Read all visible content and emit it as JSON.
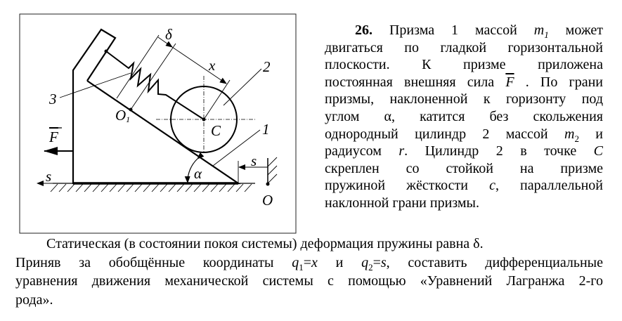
{
  "figure": {
    "labels": {
      "delta": "δ",
      "x": "x",
      "cylinder": "2",
      "stand": "3",
      "prism": "1",
      "o1": "O",
      "o1_sub": "1",
      "c": "C",
      "force": "F",
      "alpha": "α",
      "s_left": "s",
      "s_right": "s",
      "origin": "O"
    }
  },
  "problem": {
    "right_lines": [
      [
        {
          "t": "26.",
          "s": "b"
        },
        {
          "t": " Призма 1 массой "
        },
        {
          "t": "m",
          "s": "i"
        },
        {
          "t": "1",
          "s": "isub"
        },
        {
          "t": " может"
        }
      ],
      [
        {
          "t": "двигаться по гладкой горизонтальной"
        }
      ],
      [
        {
          "t": "плоскости. К призме приложена"
        }
      ],
      [
        {
          "t": "постоянная внешняя сила "
        },
        {
          "t": "F",
          "s": "ov"
        },
        {
          "t": " . По грани"
        }
      ],
      [
        {
          "t": "призмы, наклоненной к горизонту под"
        }
      ],
      [
        {
          "t": "углом α, катится без скольжения"
        }
      ],
      [
        {
          "t": "однородный цилиндр 2 массой "
        },
        {
          "t": "m",
          "s": "i"
        },
        {
          "t": "2",
          "s": "sub"
        },
        {
          "t": " и"
        }
      ],
      [
        {
          "t": "радиусом "
        },
        {
          "t": "r",
          "s": "i"
        },
        {
          "t": ". Цилиндр 2 в точке "
        },
        {
          "t": "C",
          "s": "i"
        }
      ],
      [
        {
          "t": "скреплен со стойкой на призме"
        }
      ],
      [
        {
          "t": "пружиной жёсткости "
        },
        {
          "t": "c",
          "s": "i"
        },
        {
          "t": ", параллельной"
        }
      ],
      [
        {
          "t": "наклонной грани призмы."
        }
      ]
    ],
    "bottom_lines": [
      [
        {
          "t": "Статическая (в состоянии покоя системы) деформация пружины равна δ."
        }
      ],
      [
        {
          "t": "Приняв за обобщённые координаты "
        },
        {
          "t": "q",
          "s": "i"
        },
        {
          "t": "1",
          "s": "sub"
        },
        {
          "t": "="
        },
        {
          "t": "x",
          "s": "i"
        },
        {
          "t": " и "
        },
        {
          "t": "q",
          "s": "i"
        },
        {
          "t": "2",
          "s": "sub"
        },
        {
          "t": "="
        },
        {
          "t": "s",
          "s": "i"
        },
        {
          "t": ", составить дифференциальные"
        }
      ],
      [
        {
          "t": "уравнения движения механической системы с помощью «Уравнений Лагранжа 2-го"
        }
      ],
      [
        {
          "t": "рода»."
        }
      ]
    ]
  }
}
